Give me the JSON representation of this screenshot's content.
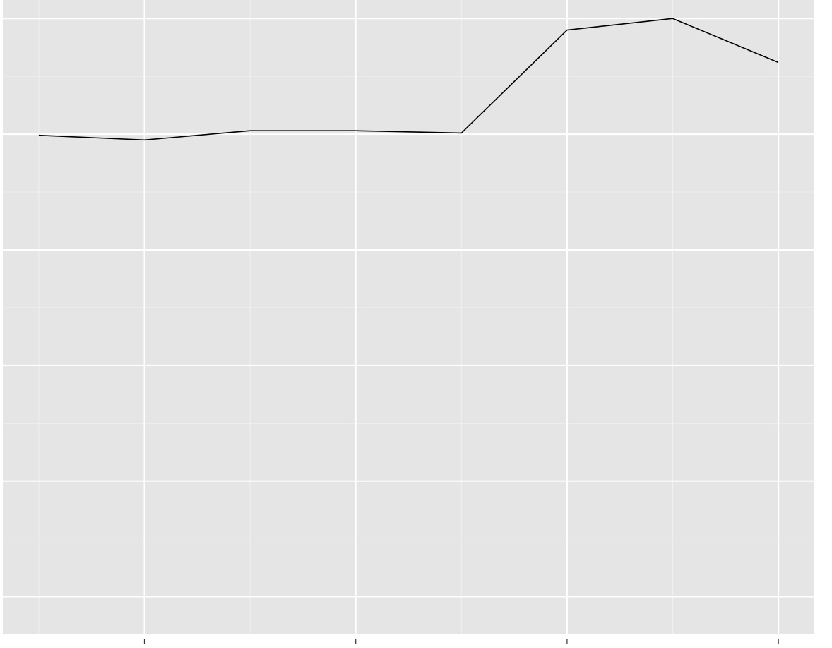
{
  "chart_data": {
    "type": "line",
    "title": "",
    "xlabel": "",
    "ylabel": "",
    "x": [
      0.5,
      1,
      1.5,
      2,
      2.5,
      3,
      3.5,
      4
    ],
    "y": [
      6.49,
      6.45,
      6.53,
      6.53,
      6.51,
      7.4,
      7.5,
      7.12
    ],
    "xlim": [
      0.33,
      4.17
    ],
    "ylim": [
      2.18,
      7.66
    ],
    "x_major_ticks": [
      1,
      2,
      3,
      4
    ],
    "x_minor_ticks": [
      0.5,
      1.5,
      2.5,
      3.5
    ],
    "y_major_ticks": [
      2.5,
      3.5,
      4.5,
      5.5,
      6.5,
      7.5
    ],
    "y_minor_ticks": [
      3,
      4,
      5,
      6,
      7
    ],
    "grid": true,
    "theme": "ggplot-gray",
    "colors": {
      "panel_background": "#e5e5e5",
      "major_grid": "#ffffff",
      "minor_grid": "#f0f0f0",
      "line": "#000000",
      "tick": "#333333"
    }
  }
}
